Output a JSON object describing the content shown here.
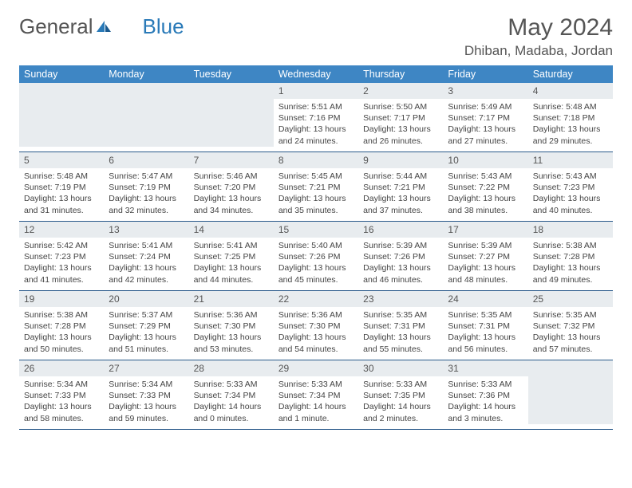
{
  "logo": {
    "word1": "General",
    "word2": "Blue"
  },
  "title": "May 2024",
  "location": "Dhiban, Madaba, Jordan",
  "colors": {
    "header_bg": "#3e86c4",
    "daynum_bg": "#e8ecef",
    "week_divider": "#2a5a8a",
    "text": "#444444",
    "title_text": "#555555",
    "logo_gray": "#555555",
    "logo_blue": "#2a7ab8"
  },
  "weekdays": [
    "Sunday",
    "Monday",
    "Tuesday",
    "Wednesday",
    "Thursday",
    "Friday",
    "Saturday"
  ],
  "weeks": [
    [
      {
        "empty": true
      },
      {
        "empty": true
      },
      {
        "empty": true
      },
      {
        "num": "1",
        "sunrise": "Sunrise: 5:51 AM",
        "sunset": "Sunset: 7:16 PM",
        "daylight": "Daylight: 13 hours and 24 minutes."
      },
      {
        "num": "2",
        "sunrise": "Sunrise: 5:50 AM",
        "sunset": "Sunset: 7:17 PM",
        "daylight": "Daylight: 13 hours and 26 minutes."
      },
      {
        "num": "3",
        "sunrise": "Sunrise: 5:49 AM",
        "sunset": "Sunset: 7:17 PM",
        "daylight": "Daylight: 13 hours and 27 minutes."
      },
      {
        "num": "4",
        "sunrise": "Sunrise: 5:48 AM",
        "sunset": "Sunset: 7:18 PM",
        "daylight": "Daylight: 13 hours and 29 minutes."
      }
    ],
    [
      {
        "num": "5",
        "sunrise": "Sunrise: 5:48 AM",
        "sunset": "Sunset: 7:19 PM",
        "daylight": "Daylight: 13 hours and 31 minutes."
      },
      {
        "num": "6",
        "sunrise": "Sunrise: 5:47 AM",
        "sunset": "Sunset: 7:19 PM",
        "daylight": "Daylight: 13 hours and 32 minutes."
      },
      {
        "num": "7",
        "sunrise": "Sunrise: 5:46 AM",
        "sunset": "Sunset: 7:20 PM",
        "daylight": "Daylight: 13 hours and 34 minutes."
      },
      {
        "num": "8",
        "sunrise": "Sunrise: 5:45 AM",
        "sunset": "Sunset: 7:21 PM",
        "daylight": "Daylight: 13 hours and 35 minutes."
      },
      {
        "num": "9",
        "sunrise": "Sunrise: 5:44 AM",
        "sunset": "Sunset: 7:21 PM",
        "daylight": "Daylight: 13 hours and 37 minutes."
      },
      {
        "num": "10",
        "sunrise": "Sunrise: 5:43 AM",
        "sunset": "Sunset: 7:22 PM",
        "daylight": "Daylight: 13 hours and 38 minutes."
      },
      {
        "num": "11",
        "sunrise": "Sunrise: 5:43 AM",
        "sunset": "Sunset: 7:23 PM",
        "daylight": "Daylight: 13 hours and 40 minutes."
      }
    ],
    [
      {
        "num": "12",
        "sunrise": "Sunrise: 5:42 AM",
        "sunset": "Sunset: 7:23 PM",
        "daylight": "Daylight: 13 hours and 41 minutes."
      },
      {
        "num": "13",
        "sunrise": "Sunrise: 5:41 AM",
        "sunset": "Sunset: 7:24 PM",
        "daylight": "Daylight: 13 hours and 42 minutes."
      },
      {
        "num": "14",
        "sunrise": "Sunrise: 5:41 AM",
        "sunset": "Sunset: 7:25 PM",
        "daylight": "Daylight: 13 hours and 44 minutes."
      },
      {
        "num": "15",
        "sunrise": "Sunrise: 5:40 AM",
        "sunset": "Sunset: 7:26 PM",
        "daylight": "Daylight: 13 hours and 45 minutes."
      },
      {
        "num": "16",
        "sunrise": "Sunrise: 5:39 AM",
        "sunset": "Sunset: 7:26 PM",
        "daylight": "Daylight: 13 hours and 46 minutes."
      },
      {
        "num": "17",
        "sunrise": "Sunrise: 5:39 AM",
        "sunset": "Sunset: 7:27 PM",
        "daylight": "Daylight: 13 hours and 48 minutes."
      },
      {
        "num": "18",
        "sunrise": "Sunrise: 5:38 AM",
        "sunset": "Sunset: 7:28 PM",
        "daylight": "Daylight: 13 hours and 49 minutes."
      }
    ],
    [
      {
        "num": "19",
        "sunrise": "Sunrise: 5:38 AM",
        "sunset": "Sunset: 7:28 PM",
        "daylight": "Daylight: 13 hours and 50 minutes."
      },
      {
        "num": "20",
        "sunrise": "Sunrise: 5:37 AM",
        "sunset": "Sunset: 7:29 PM",
        "daylight": "Daylight: 13 hours and 51 minutes."
      },
      {
        "num": "21",
        "sunrise": "Sunrise: 5:36 AM",
        "sunset": "Sunset: 7:30 PM",
        "daylight": "Daylight: 13 hours and 53 minutes."
      },
      {
        "num": "22",
        "sunrise": "Sunrise: 5:36 AM",
        "sunset": "Sunset: 7:30 PM",
        "daylight": "Daylight: 13 hours and 54 minutes."
      },
      {
        "num": "23",
        "sunrise": "Sunrise: 5:35 AM",
        "sunset": "Sunset: 7:31 PM",
        "daylight": "Daylight: 13 hours and 55 minutes."
      },
      {
        "num": "24",
        "sunrise": "Sunrise: 5:35 AM",
        "sunset": "Sunset: 7:31 PM",
        "daylight": "Daylight: 13 hours and 56 minutes."
      },
      {
        "num": "25",
        "sunrise": "Sunrise: 5:35 AM",
        "sunset": "Sunset: 7:32 PM",
        "daylight": "Daylight: 13 hours and 57 minutes."
      }
    ],
    [
      {
        "num": "26",
        "sunrise": "Sunrise: 5:34 AM",
        "sunset": "Sunset: 7:33 PM",
        "daylight": "Daylight: 13 hours and 58 minutes."
      },
      {
        "num": "27",
        "sunrise": "Sunrise: 5:34 AM",
        "sunset": "Sunset: 7:33 PM",
        "daylight": "Daylight: 13 hours and 59 minutes."
      },
      {
        "num": "28",
        "sunrise": "Sunrise: 5:33 AM",
        "sunset": "Sunset: 7:34 PM",
        "daylight": "Daylight: 14 hours and 0 minutes."
      },
      {
        "num": "29",
        "sunrise": "Sunrise: 5:33 AM",
        "sunset": "Sunset: 7:34 PM",
        "daylight": "Daylight: 14 hours and 1 minute."
      },
      {
        "num": "30",
        "sunrise": "Sunrise: 5:33 AM",
        "sunset": "Sunset: 7:35 PM",
        "daylight": "Daylight: 14 hours and 2 minutes."
      },
      {
        "num": "31",
        "sunrise": "Sunrise: 5:33 AM",
        "sunset": "Sunset: 7:36 PM",
        "daylight": "Daylight: 14 hours and 3 minutes."
      },
      {
        "empty": true
      }
    ]
  ]
}
